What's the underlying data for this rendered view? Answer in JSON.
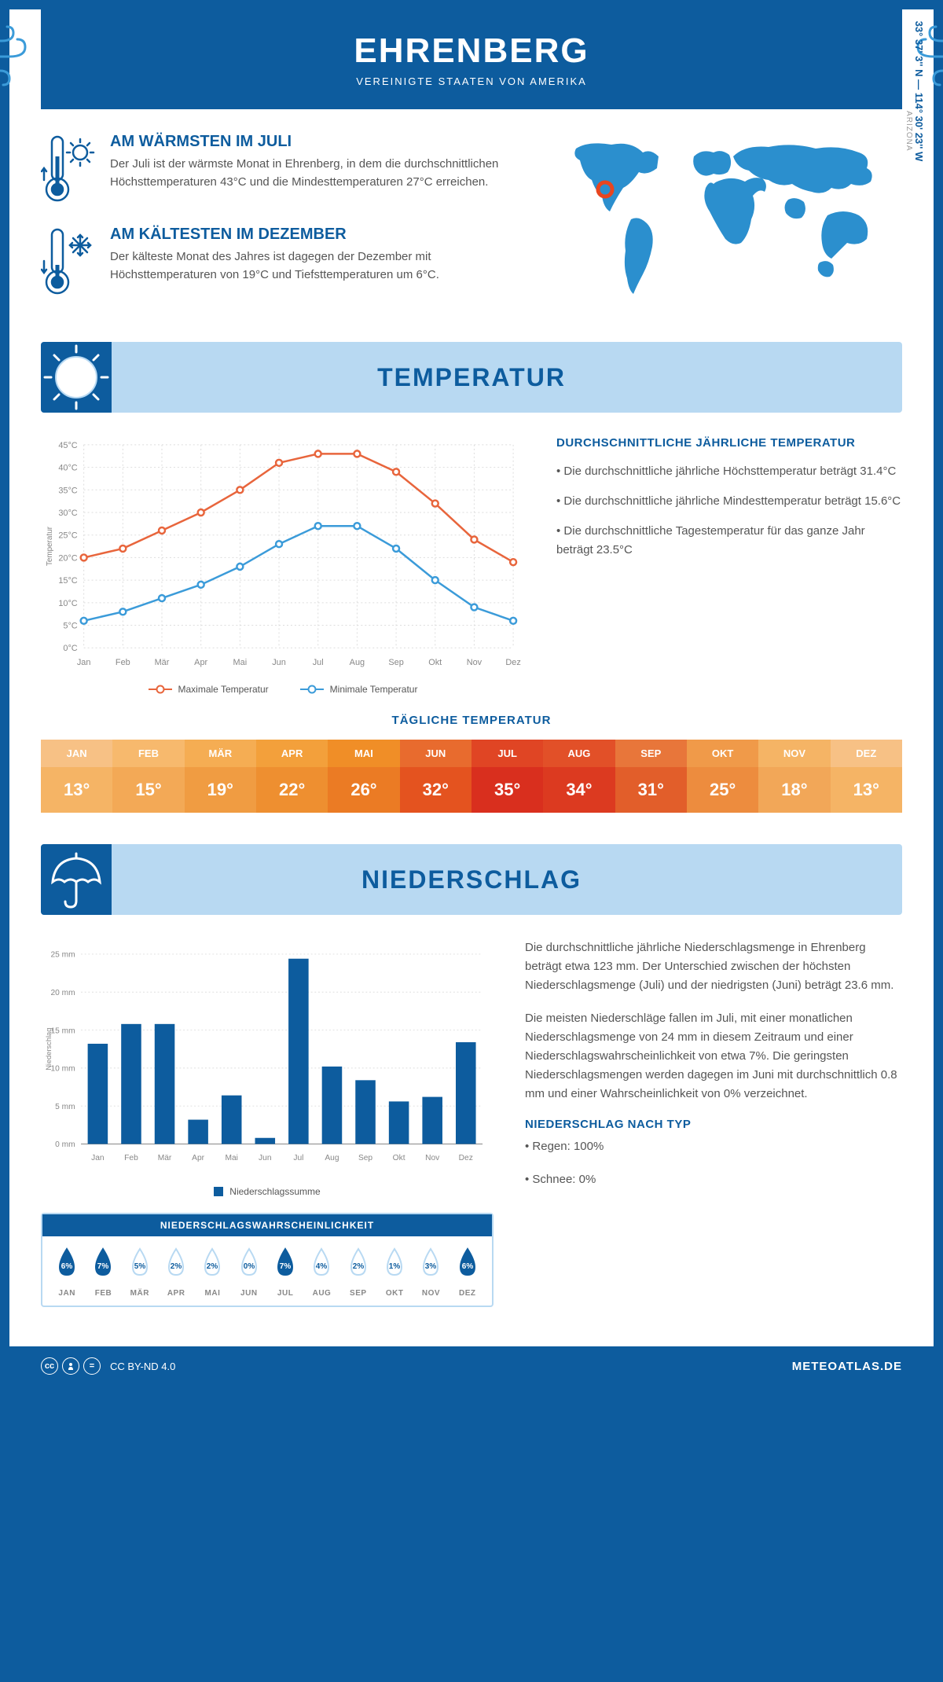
{
  "header": {
    "title": "EHRENBERG",
    "subtitle": "VEREINIGTE STAATEN VON AMERIKA"
  },
  "coords": "33° 37' 3'' N — 114° 30' 23'' W",
  "region": "ARIZONA",
  "warm": {
    "title": "AM WÄRMSTEN IM JULI",
    "text": "Der Juli ist der wärmste Monat in Ehrenberg, in dem die durchschnittlichen Höchsttemperaturen 43°C und die Mindesttemperaturen 27°C erreichen."
  },
  "cold": {
    "title": "AM KÄLTESTEN IM DEZEMBER",
    "text": "Der kälteste Monat des Jahres ist dagegen der Dezember mit Höchsttemperaturen von 19°C und Tiefsttemperaturen um 6°C."
  },
  "tempSection": {
    "title": "TEMPERATUR",
    "infoTitle": "DURCHSCHNITTLICHE JÄHRLICHE TEMPERATUR",
    "bullets": [
      "• Die durchschnittliche jährliche Höchsttemperatur beträgt 31.4°C",
      "• Die durchschnittliche jährliche Mindesttemperatur beträgt 15.6°C",
      "• Die durchschnittliche Tagestemperatur für das ganze Jahr beträgt 23.5°C"
    ],
    "legendMax": "Maximale Temperatur",
    "legendMin": "Minimale Temperatur",
    "dailyTitle": "TÄGLICHE TEMPERATUR"
  },
  "tempChart": {
    "months": [
      "Jan",
      "Feb",
      "Mär",
      "Apr",
      "Mai",
      "Jun",
      "Jul",
      "Aug",
      "Sep",
      "Okt",
      "Nov",
      "Dez"
    ],
    "max": [
      20,
      22,
      26,
      30,
      35,
      41,
      43,
      43,
      39,
      32,
      24,
      19
    ],
    "min": [
      6,
      8,
      11,
      14,
      18,
      23,
      27,
      27,
      22,
      15,
      9,
      6
    ],
    "yTicks": [
      0,
      5,
      10,
      15,
      20,
      25,
      30,
      35,
      40,
      45
    ],
    "yLabel": "Temperatur",
    "maxColor": "#e8653c",
    "minColor": "#3b9bd9",
    "gridColor": "#dddddd",
    "axisColor": "#888888"
  },
  "daily": {
    "months": [
      "JAN",
      "FEB",
      "MÄR",
      "APR",
      "MAI",
      "JUN",
      "JUL",
      "AUG",
      "SEP",
      "OKT",
      "NOV",
      "DEZ"
    ],
    "vals": [
      "13°",
      "15°",
      "19°",
      "22°",
      "26°",
      "32°",
      "35°",
      "34°",
      "31°",
      "25°",
      "18°",
      "13°"
    ],
    "headerColors": [
      "#f7c185",
      "#f7b96d",
      "#f5ad53",
      "#f3a03b",
      "#f08e27",
      "#e86b2e",
      "#e04524",
      "#e25028",
      "#e8763a",
      "#f09a49",
      "#f5b465",
      "#f7c185"
    ],
    "valColors": [
      "#f5b465",
      "#f3a956",
      "#f09c42",
      "#ee8f30",
      "#eb7b24",
      "#e4531f",
      "#d92f1e",
      "#dc3a20",
      "#e25e2a",
      "#ed8c3e",
      "#f2a758",
      "#f5b465"
    ]
  },
  "precipSection": {
    "title": "NIEDERSCHLAG",
    "para1": "Die durchschnittliche jährliche Niederschlagsmenge in Ehrenberg beträgt etwa 123 mm. Der Unterschied zwischen der höchsten Niederschlagsmenge (Juli) und der niedrigsten (Juni) beträgt 23.6 mm.",
    "para2": "Die meisten Niederschläge fallen im Juli, mit einer monatlichen Niederschlagsmenge von 24 mm in diesem Zeitraum und einer Niederschlagswahrscheinlichkeit von etwa 7%. Die geringsten Niederschlagsmengen werden dagegen im Juni mit durchschnittlich 0.8 mm und einer Wahrscheinlichkeit von 0% verzeichnet.",
    "typeTitle": "NIEDERSCHLAG NACH TYP",
    "typeRain": "• Regen: 100%",
    "typeSnow": "• Schnee: 0%"
  },
  "precipChart": {
    "months": [
      "Jan",
      "Feb",
      "Mär",
      "Apr",
      "Mai",
      "Jun",
      "Jul",
      "Aug",
      "Sep",
      "Okt",
      "Nov",
      "Dez"
    ],
    "values": [
      13.2,
      15.8,
      15.8,
      3.2,
      6.4,
      0.8,
      24.4,
      10.2,
      8.4,
      5.6,
      6.2,
      13.4
    ],
    "yTicks": [
      0,
      5,
      10,
      15,
      20,
      25
    ],
    "yLabel": "Niederschlag",
    "legendLabel": "Niederschlagssumme",
    "barColor": "#0d5c9e",
    "gridColor": "#dddddd",
    "axisColor": "#888888"
  },
  "prob": {
    "title": "NIEDERSCHLAGSWAHRSCHEINLICHKEIT",
    "months": [
      "JAN",
      "FEB",
      "MÄR",
      "APR",
      "MAI",
      "JUN",
      "JUL",
      "AUG",
      "SEP",
      "OKT",
      "NOV",
      "DEZ"
    ],
    "vals": [
      "6%",
      "7%",
      "5%",
      "2%",
      "2%",
      "0%",
      "7%",
      "4%",
      "2%",
      "1%",
      "3%",
      "6%"
    ],
    "filled": [
      true,
      true,
      false,
      false,
      false,
      false,
      true,
      false,
      false,
      false,
      false,
      true
    ],
    "fillColor": "#0d5c9e",
    "outlineColor": "#b8d9f2"
  },
  "footer": {
    "license": "CC BY-ND 4.0",
    "site": "METEOATLAS.DE"
  },
  "colors": {
    "primary": "#0d5c9e",
    "lightBlue": "#b8d9f2",
    "mapBlue": "#2b8fce",
    "markerRed": "#e8451f"
  }
}
